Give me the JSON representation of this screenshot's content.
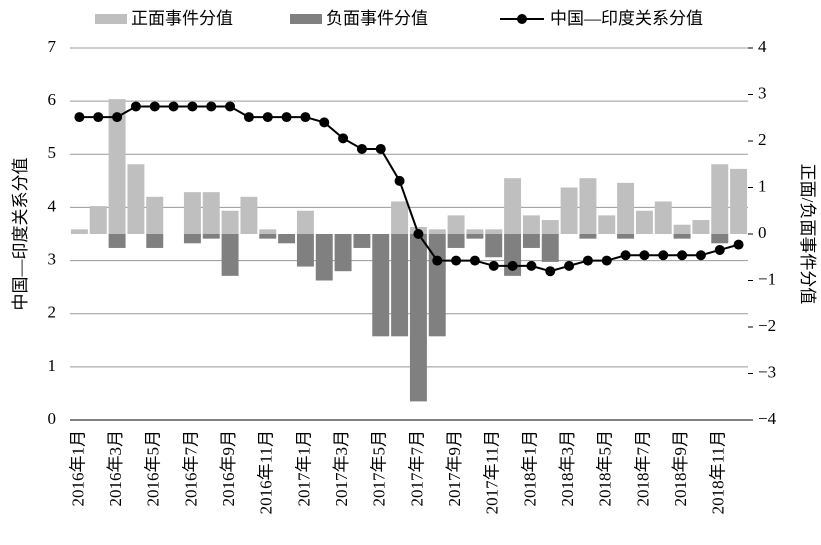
{
  "chart_data": {
    "type": "bar-line",
    "categories": [
      "2016年1月",
      null,
      "2016年3月",
      null,
      "2016年5月",
      null,
      "2016年7月",
      null,
      "2016年9月",
      null,
      "2016年11月",
      null,
      "2017年1月",
      null,
      "2017年3月",
      null,
      "2017年5月",
      null,
      "2017年7月",
      null,
      "2017年9月",
      null,
      "2017年11月",
      null,
      "2018年1月",
      null,
      "2018年3月",
      null,
      "2018年5月",
      null,
      "2018年7月",
      null,
      "2018年9月",
      null,
      "2018年11月",
      null
    ],
    "series": [
      {
        "name": "正面事件分值",
        "type": "bar",
        "axis": "y2",
        "color": "#bfbfbf",
        "values": [
          0.1,
          0.6,
          2.9,
          1.5,
          0.8,
          0,
          0.9,
          0.9,
          0.5,
          0.8,
          0.1,
          0,
          0.5,
          0,
          0,
          0,
          0,
          0.7,
          0.15,
          0.1,
          0.4,
          0.1,
          0.1,
          1.2,
          0.4,
          0.3,
          1.0,
          1.2,
          0.4,
          1.1,
          0.5,
          0.7,
          0.2,
          0.3,
          1.5,
          1.4
        ]
      },
      {
        "name": "负面事件分值",
        "type": "bar",
        "axis": "y2",
        "color": "#808080",
        "values": [
          0,
          0,
          -0.3,
          0,
          -0.3,
          0,
          -0.2,
          -0.1,
          -0.9,
          0,
          -0.1,
          -0.2,
          -0.7,
          -1.0,
          -0.8,
          -0.3,
          -2.2,
          -2.2,
          -3.6,
          -2.2,
          -0.3,
          -0.1,
          -0.5,
          -0.9,
          -0.3,
          -0.6,
          0,
          -0.1,
          0,
          -0.1,
          0,
          0,
          -0.1,
          0,
          -0.2,
          0
        ]
      },
      {
        "name": "中国—印度关系分值",
        "type": "line",
        "color": "#000000",
        "values": [
          5.7,
          5.7,
          5.7,
          5.9,
          5.9,
          5.9,
          5.9,
          5.9,
          5.9,
          5.7,
          5.7,
          5.7,
          5.7,
          5.6,
          5.3,
          5.1,
          5.1,
          4.5,
          3.5,
          3.0,
          3.0,
          3.0,
          2.9,
          2.9,
          2.9,
          2.8,
          2.9,
          3.0,
          3.0,
          3.1,
          3.1,
          3.1,
          3.1,
          3.1,
          3.2,
          3.3
        ]
      }
    ],
    "y_label": "中国—印度关系分值",
    "y2_label": "正面/负面事件分值",
    "ylim": [
      0,
      7
    ],
    "yticks": [
      0,
      1,
      2,
      3,
      4,
      5,
      6,
      7
    ],
    "y2lim": [
      -4,
      4
    ],
    "y2ticks": [
      {
        "value": -4,
        "label": "−4"
      },
      {
        "value": -3,
        "label": "−3"
      },
      {
        "value": -2,
        "label": "−2"
      },
      {
        "value": -1,
        "label": "−1"
      },
      0,
      1,
      2,
      3,
      4
    ],
    "grid": true
  }
}
